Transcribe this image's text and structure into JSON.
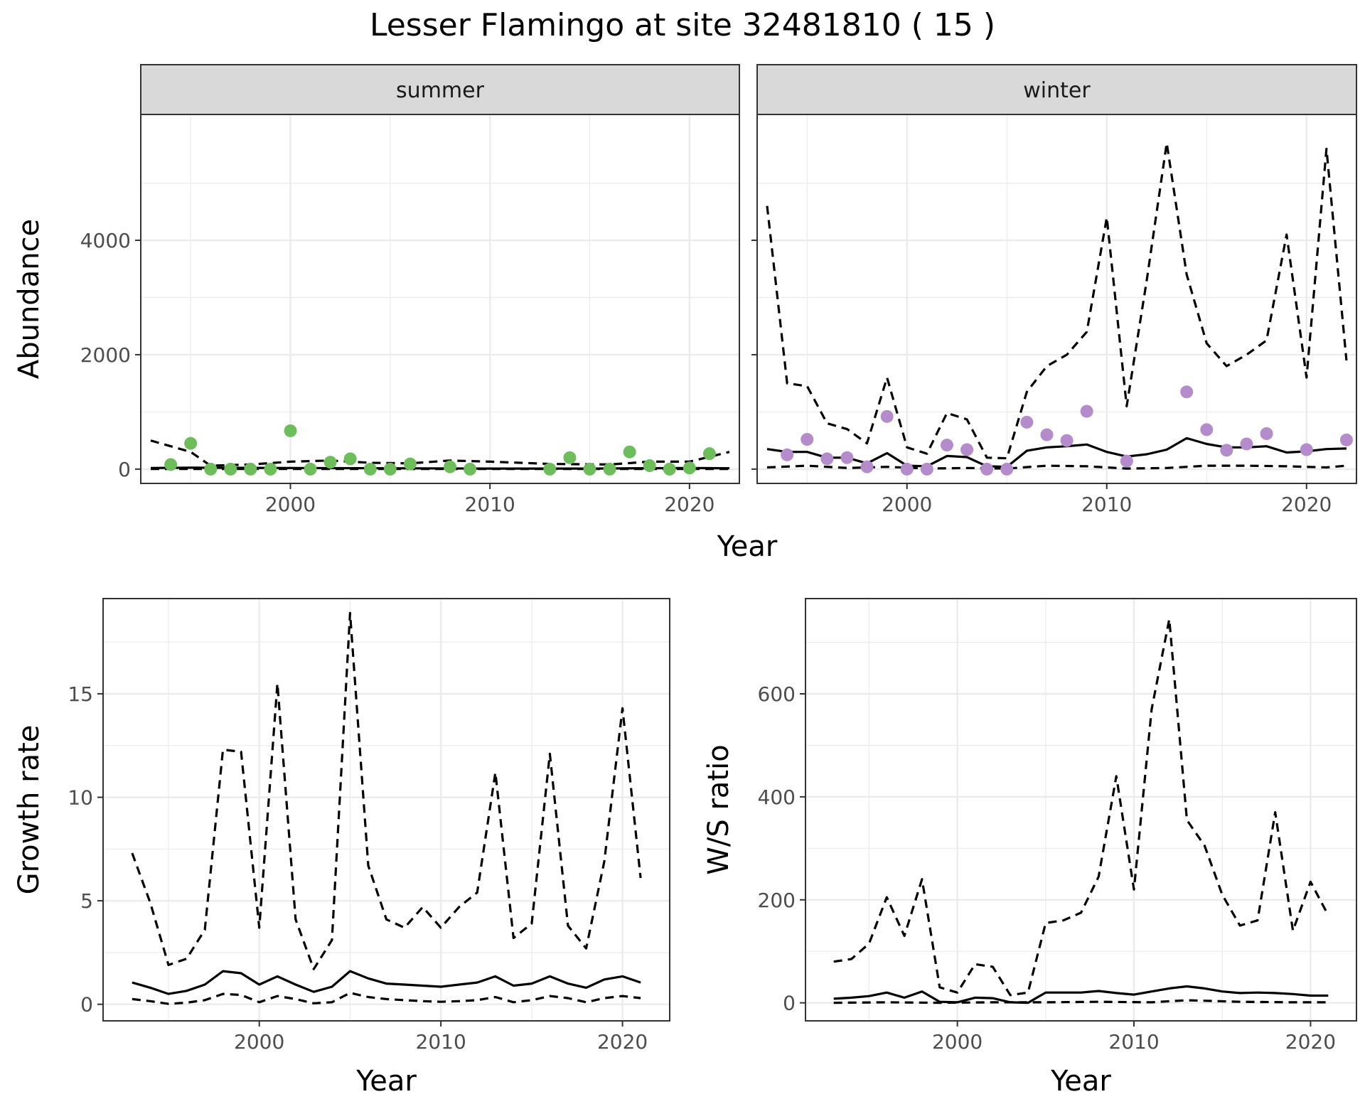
{
  "title": "Lesser Flamingo at site 32481810 ( 15 )",
  "colors": {
    "summer_points": "#6DBE5A",
    "winter_points": "#B48CCB",
    "lines": "#000000",
    "strip_bg": "#D9D9D9",
    "grid_major": "#EBEBEB",
    "panel_border": "#333333"
  },
  "chart_data": [
    {
      "type": "line",
      "facet": "summer",
      "xlabel": "Year",
      "ylabel": "Abundance",
      "xlim": [
        1992.5,
        2022.5
      ],
      "ylim": [
        -250,
        6200
      ],
      "x_ticks": [
        "2000",
        "2010",
        "2020"
      ],
      "y_ticks": [
        "0",
        "2000",
        "4000"
      ],
      "points": {
        "x": [
          1994,
          1995,
          1996,
          1997,
          1998,
          1999,
          2000,
          2001,
          2002,
          2003,
          2004,
          2005,
          2006,
          2008,
          2009,
          2013,
          2014,
          2015,
          2016,
          2017,
          2018,
          2019,
          2020,
          2021
        ],
        "y": [
          80,
          450,
          0,
          0,
          0,
          0,
          670,
          0,
          120,
          180,
          0,
          0,
          90,
          40,
          0,
          0,
          200,
          0,
          0,
          300,
          60,
          0,
          20,
          270
        ]
      },
      "series": [
        {
          "style": "dashed",
          "x": [
            1993,
            1995,
            1996,
            1998,
            2000,
            2002,
            2004,
            2006,
            2008,
            2010,
            2013,
            2016,
            2018,
            2020,
            2022
          ],
          "y": [
            500,
            300,
            60,
            80,
            130,
            150,
            110,
            100,
            150,
            130,
            90,
            80,
            130,
            130,
            300
          ]
        },
        {
          "style": "solid",
          "x": [
            1993,
            1995,
            2000,
            2005,
            2010,
            2015,
            2020,
            2022
          ],
          "y": [
            20,
            25,
            20,
            15,
            10,
            10,
            20,
            15
          ]
        },
        {
          "style": "dashed",
          "x": [
            1993,
            2022
          ],
          "y": [
            2,
            2
          ]
        }
      ]
    },
    {
      "type": "line",
      "facet": "winter",
      "xlabel": "Year",
      "ylabel": "Abundance",
      "xlim": [
        1992.5,
        2022.5
      ],
      "ylim": [
        -250,
        6200
      ],
      "x_ticks": [
        "2000",
        "2010",
        "2020"
      ],
      "y_ticks": [
        "0",
        "2000",
        "4000"
      ],
      "points": {
        "x": [
          1994,
          1995,
          1996,
          1997,
          1998,
          1999,
          2000,
          2001,
          2002,
          2003,
          2004,
          2005,
          2006,
          2007,
          2008,
          2009,
          2011,
          2014,
          2015,
          2016,
          2017,
          2018,
          2020,
          2022
        ],
        "y": [
          250,
          520,
          180,
          200,
          40,
          920,
          0,
          0,
          420,
          340,
          0,
          0,
          820,
          600,
          500,
          1010,
          140,
          1350,
          690,
          330,
          440,
          620,
          340,
          510
        ]
      },
      "series": [
        {
          "style": "dashed",
          "x": [
            1993,
            1994,
            1995,
            1996,
            1997,
            1998,
            1999,
            2000,
            2001,
            2002,
            2003,
            2004,
            2005,
            2006,
            2007,
            2008,
            2009,
            2010,
            2011,
            2012,
            2013,
            2014,
            2015,
            2016,
            2017,
            2018,
            2019,
            2020,
            2021,
            2022
          ],
          "y": [
            4600,
            1500,
            1450,
            800,
            700,
            450,
            1600,
            380,
            270,
            980,
            870,
            200,
            190,
            1350,
            1800,
            2000,
            2400,
            4400,
            1100,
            3300,
            5700,
            3400,
            2200,
            1800,
            2000,
            2250,
            4100,
            1600,
            5600,
            1900
          ]
        },
        {
          "style": "solid",
          "x": [
            1993,
            1994,
            1995,
            1996,
            1997,
            1998,
            1999,
            2000,
            2001,
            2002,
            2003,
            2004,
            2005,
            2006,
            2007,
            2008,
            2009,
            2010,
            2011,
            2012,
            2013,
            2014,
            2015,
            2016,
            2017,
            2018,
            2019,
            2020,
            2021,
            2022
          ],
          "y": [
            350,
            300,
            300,
            200,
            200,
            100,
            280,
            60,
            50,
            230,
            210,
            50,
            40,
            320,
            380,
            400,
            430,
            300,
            220,
            260,
            340,
            540,
            440,
            380,
            380,
            400,
            290,
            310,
            350,
            360
          ]
        },
        {
          "style": "dashed",
          "x": [
            1993,
            1995,
            1997,
            1999,
            2001,
            2003,
            2005,
            2007,
            2009,
            2011,
            2013,
            2015,
            2017,
            2019,
            2021,
            2022
          ],
          "y": [
            30,
            60,
            20,
            40,
            10,
            20,
            10,
            60,
            50,
            10,
            20,
            60,
            60,
            50,
            30,
            60
          ]
        }
      ]
    },
    {
      "type": "line",
      "panel": "growth",
      "xlabel": "Year",
      "ylabel": "Growth rate",
      "xlim": [
        1991.4,
        2022.6
      ],
      "ylim": [
        -0.8,
        19.6
      ],
      "x_ticks": [
        "2000",
        "2010",
        "2020"
      ],
      "y_ticks": [
        "0",
        "5",
        "10",
        "15"
      ],
      "series": [
        {
          "style": "dashed",
          "x": [
            1993,
            1994,
            1995,
            1996,
            1997,
            1998,
            1999,
            2000,
            2001,
            2002,
            2003,
            2004,
            2005,
            2006,
            2007,
            2008,
            2009,
            2010,
            2011,
            2012,
            2013,
            2014,
            2015,
            2016,
            2017,
            2018,
            2019,
            2020,
            2021
          ],
          "y": [
            7.3,
            4.9,
            1.9,
            2.2,
            3.6,
            12.3,
            12.2,
            3.7,
            15.5,
            4.1,
            1.7,
            3.1,
            18.9,
            6.7,
            4.1,
            3.7,
            4.7,
            3.7,
            4.7,
            5.4,
            11.2,
            3.2,
            3.9,
            12.1,
            3.8,
            2.7,
            6.9,
            14.3,
            6.1
          ]
        },
        {
          "style": "solid",
          "x": [
            1993,
            1994,
            1995,
            1996,
            1997,
            1998,
            1999,
            2000,
            2001,
            2002,
            2003,
            2004,
            2005,
            2006,
            2007,
            2008,
            2009,
            2010,
            2011,
            2012,
            2013,
            2014,
            2015,
            2016,
            2017,
            2018,
            2019,
            2020,
            2021
          ],
          "y": [
            1.05,
            0.8,
            0.5,
            0.65,
            0.95,
            1.6,
            1.5,
            0.95,
            1.35,
            0.95,
            0.6,
            0.85,
            1.6,
            1.25,
            1.0,
            0.95,
            0.9,
            0.85,
            0.95,
            1.05,
            1.35,
            0.9,
            1.0,
            1.35,
            1.0,
            0.8,
            1.2,
            1.35,
            1.05
          ]
        },
        {
          "style": "dashed",
          "x": [
            1993,
            1994,
            1995,
            1996,
            1997,
            1998,
            1999,
            2000,
            2001,
            2002,
            2003,
            2004,
            2005,
            2006,
            2007,
            2008,
            2009,
            2010,
            2011,
            2012,
            2013,
            2014,
            2015,
            2016,
            2017,
            2018,
            2019,
            2020,
            2021
          ],
          "y": [
            0.25,
            0.15,
            0.02,
            0.08,
            0.2,
            0.5,
            0.45,
            0.1,
            0.4,
            0.25,
            0.05,
            0.1,
            0.55,
            0.35,
            0.25,
            0.2,
            0.15,
            0.12,
            0.15,
            0.2,
            0.35,
            0.1,
            0.2,
            0.4,
            0.3,
            0.1,
            0.3,
            0.4,
            0.3
          ]
        }
      ]
    },
    {
      "type": "line",
      "panel": "ratio",
      "xlabel": "Year",
      "ylabel": "W/S ratio",
      "xlim": [
        1991.4,
        2022.6
      ],
      "ylim": [
        -35,
        785
      ],
      "x_ticks": [
        "2000",
        "2010",
        "2020"
      ],
      "y_ticks": [
        "0",
        "200",
        "400",
        "600"
      ],
      "series": [
        {
          "style": "dashed",
          "x": [
            1993,
            1994,
            1995,
            1996,
            1997,
            1998,
            1999,
            2000,
            2001,
            2002,
            2003,
            2004,
            2005,
            2006,
            2007,
            2008,
            2009,
            2010,
            2011,
            2012,
            2013,
            2014,
            2015,
            2016,
            2017,
            2018,
            2019,
            2020,
            2021
          ],
          "y": [
            80,
            85,
            115,
            205,
            130,
            240,
            30,
            20,
            75,
            70,
            15,
            20,
            155,
            160,
            175,
            245,
            440,
            220,
            570,
            745,
            355,
            305,
            210,
            150,
            160,
            370,
            140,
            235,
            170
          ]
        },
        {
          "style": "solid",
          "x": [
            1993,
            1994,
            1995,
            1996,
            1997,
            1998,
            1999,
            2000,
            2001,
            2002,
            2003,
            2004,
            2005,
            2006,
            2007,
            2008,
            2009,
            2010,
            2011,
            2012,
            2013,
            2014,
            2015,
            2016,
            2017,
            2018,
            2019,
            2020,
            2021
          ],
          "y": [
            8,
            10,
            13,
            20,
            10,
            22,
            2,
            1,
            10,
            9,
            1,
            0,
            20,
            20,
            20,
            23,
            19,
            16,
            22,
            28,
            32,
            28,
            22,
            19,
            20,
            19,
            17,
            14,
            14
          ]
        },
        {
          "style": "dashed",
          "x": [
            1993,
            1996,
            1999,
            2002,
            2005,
            2008,
            2011,
            2013,
            2016,
            2019,
            2021
          ],
          "y": [
            0,
            1,
            0,
            1,
            1,
            2,
            1,
            5,
            2,
            1,
            1
          ]
        }
      ]
    }
  ]
}
